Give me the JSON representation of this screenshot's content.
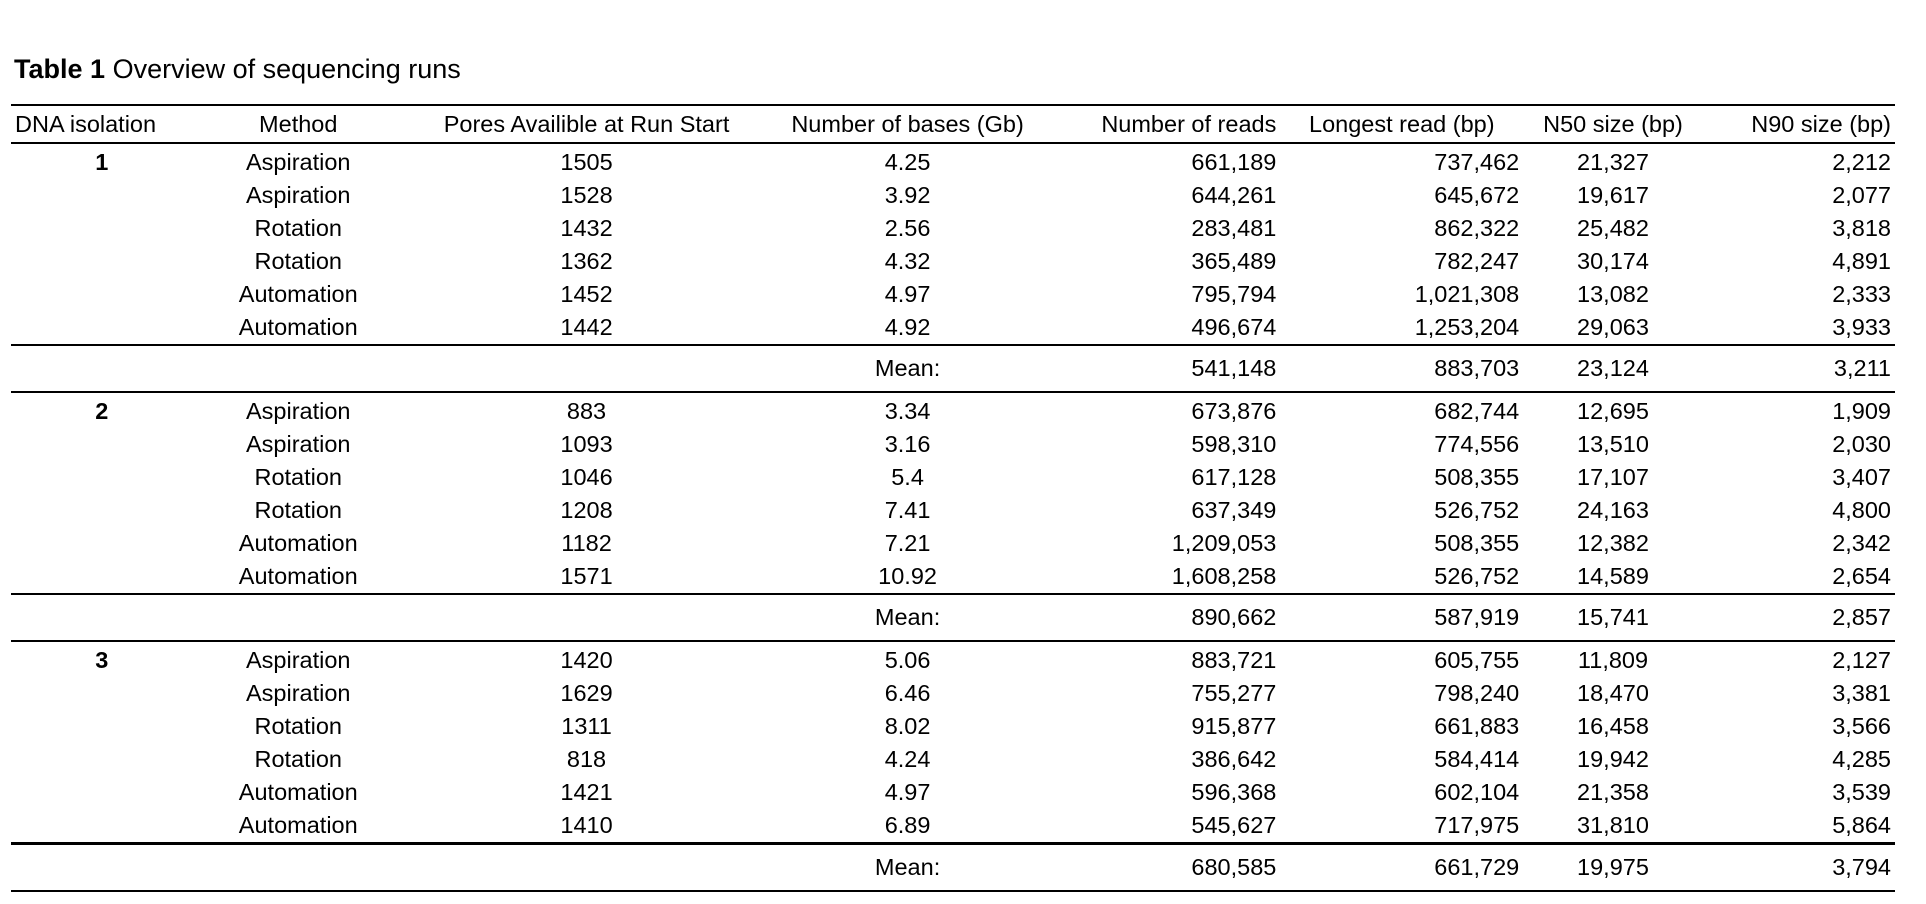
{
  "caption": {
    "label": "Table 1",
    "text": "Overview of sequencing runs"
  },
  "columns": [
    "DNA isolation",
    "Method",
    "Pores Availible at Run Start",
    "Number of bases (Gb)",
    "Number of reads",
    "Longest read (bp)",
    "N50 size (bp)",
    "N90 size (bp)"
  ],
  "groups": [
    {
      "isolation": "1",
      "runs": [
        {
          "method": "Aspiration",
          "pores": "1505",
          "bases": "4.25",
          "reads": "661,189",
          "longest": "737,462",
          "n50": "21,327",
          "n90": "2,212"
        },
        {
          "method": "Aspiration",
          "pores": "1528",
          "bases": "3.92",
          "reads": "644,261",
          "longest": "645,672",
          "n50": "19,617",
          "n90": "2,077"
        },
        {
          "method": "Rotation",
          "pores": "1432",
          "bases": "2.56",
          "reads": "283,481",
          "longest": "862,322",
          "n50": "25,482",
          "n90": "3,818"
        },
        {
          "method": "Rotation",
          "pores": "1362",
          "bases": "4.32",
          "reads": "365,489",
          "longest": "782,247",
          "n50": "30,174",
          "n90": "4,891"
        },
        {
          "method": "Automation",
          "pores": "1452",
          "bases": "4.97",
          "reads": "795,794",
          "longest": "1,021,308",
          "n50": "13,082",
          "n90": "2,333"
        },
        {
          "method": "Automation",
          "pores": "1442",
          "bases": "4.92",
          "reads": "496,674",
          "longest": "1,253,204",
          "n50": "29,063",
          "n90": "3,933"
        }
      ],
      "mean": {
        "label": "Mean:",
        "reads": "541,148",
        "longest": "883,703",
        "n50": "23,124",
        "n90": "3,211"
      }
    },
    {
      "isolation": "2",
      "runs": [
        {
          "method": "Aspiration",
          "pores": "883",
          "bases": "3.34",
          "reads": "673,876",
          "longest": "682,744",
          "n50": "12,695",
          "n90": "1,909"
        },
        {
          "method": "Aspiration",
          "pores": "1093",
          "bases": "3.16",
          "reads": "598,310",
          "longest": "774,556",
          "n50": "13,510",
          "n90": "2,030"
        },
        {
          "method": "Rotation",
          "pores": "1046",
          "bases": "5.4",
          "reads": "617,128",
          "longest": "508,355",
          "n50": "17,107",
          "n90": "3,407"
        },
        {
          "method": "Rotation",
          "pores": "1208",
          "bases": "7.41",
          "reads": "637,349",
          "longest": "526,752",
          "n50": "24,163",
          "n90": "4,800"
        },
        {
          "method": "Automation",
          "pores": "1182",
          "bases": "7.21",
          "reads": "1,209,053",
          "longest": "508,355",
          "n50": "12,382",
          "n90": "2,342"
        },
        {
          "method": "Automation",
          "pores": "1571",
          "bases": "10.92",
          "reads": "1,608,258",
          "longest": "526,752",
          "n50": "14,589",
          "n90": "2,654"
        }
      ],
      "mean": {
        "label": "Mean:",
        "reads": "890,662",
        "longest": "587,919",
        "n50": "15,741",
        "n90": "2,857"
      }
    },
    {
      "isolation": "3",
      "runs": [
        {
          "method": "Aspiration",
          "pores": "1420",
          "bases": "5.06",
          "reads": "883,721",
          "longest": "605,755",
          "n50": "11,809",
          "n90": "2,127"
        },
        {
          "method": "Aspiration",
          "pores": "1629",
          "bases": "6.46",
          "reads": "755,277",
          "longest": "798,240",
          "n50": "18,470",
          "n90": "3,381"
        },
        {
          "method": "Rotation",
          "pores": "1311",
          "bases": "8.02",
          "reads": "915,877",
          "longest": "661,883",
          "n50": "16,458",
          "n90": "3,566"
        },
        {
          "method": "Rotation",
          "pores": "818",
          "bases": "4.24",
          "reads": "386,642",
          "longest": "584,414",
          "n50": "19,942",
          "n90": "4,285"
        },
        {
          "method": "Automation",
          "pores": "1421",
          "bases": "4.97",
          "reads": "596,368",
          "longest": "602,104",
          "n50": "21,358",
          "n90": "3,539"
        },
        {
          "method": "Automation",
          "pores": "1410",
          "bases": "6.89",
          "reads": "545,627",
          "longest": "717,975",
          "n50": "31,810",
          "n90": "5,864"
        }
      ],
      "mean": {
        "label": "Mean:",
        "reads": "680,585",
        "longest": "661,729",
        "n50": "19,975",
        "n90": "3,794"
      }
    }
  ]
}
